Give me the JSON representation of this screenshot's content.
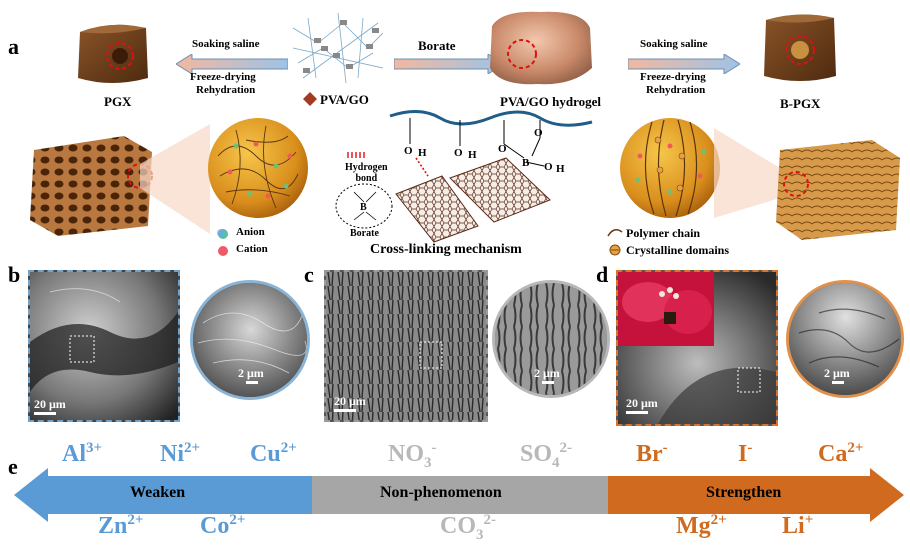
{
  "panels": {
    "a": "a",
    "b": "b",
    "c": "c",
    "d": "d",
    "e": "e"
  },
  "panel_a": {
    "left_arrow": {
      "line1": "Soaking saline",
      "line2": "Freeze-drying",
      "line3": "Rehydration"
    },
    "center_arrow": {
      "label": "Borate"
    },
    "right_arrow": {
      "line1": "Soaking saline",
      "line2": "Freeze-drying",
      "line3": "Rehydration"
    },
    "pgx_label": "PGX",
    "bpgx_label": "B-PGX",
    "pvago_label": "PVA/GO",
    "hydrogel_label": "PVA/GO hydrogel",
    "hydrogen_bond_line1": "Hydrogen",
    "hydrogen_bond_line2": "bond",
    "borate_label": "Borate",
    "mechanism_label": "Cross-linking mechanism",
    "legend_left": {
      "anion": "Anion",
      "cation": "Cation"
    },
    "legend_right": {
      "polymer_chain": "Polymer chain",
      "crystalline": "Crystalline domains"
    },
    "boron_symbol": "B",
    "oxygen": "O",
    "hydrogen": "H"
  },
  "panel_b": {
    "scale_main": "20 μm",
    "scale_inset": "2 μm"
  },
  "panel_c": {
    "scale_main": "20 μm",
    "scale_inset": "2 μm"
  },
  "panel_d": {
    "scale_main": "20 μm",
    "scale_inset": "2 μm"
  },
  "panel_e": {
    "weaken": "Weaken",
    "non": "Non-phenomenon",
    "strengthen": "Strengthen",
    "colors": {
      "weaken": "#5b9bd5",
      "non": "#a6a6a6",
      "strengthen": "#d06a1e"
    },
    "ions_top": [
      {
        "base": "Al",
        "sup": "3+",
        "sub": ""
      },
      {
        "base": "Ni",
        "sup": "2+",
        "sub": ""
      },
      {
        "base": "Cu",
        "sup": "2+",
        "sub": ""
      },
      {
        "base": "NO",
        "sup": "-",
        "sub": "3"
      },
      {
        "base": "SO",
        "sup": "2-",
        "sub": "4"
      },
      {
        "base": "Br",
        "sup": "-",
        "sub": ""
      },
      {
        "base": "I",
        "sup": "-",
        "sub": ""
      },
      {
        "base": "Ca",
        "sup": "2+",
        "sub": ""
      }
    ],
    "ions_bottom": [
      {
        "base": "Zn",
        "sup": "2+",
        "sub": ""
      },
      {
        "base": "Co",
        "sup": "2+",
        "sub": ""
      },
      {
        "base": "CO",
        "sup": "2-",
        "sub": "3"
      },
      {
        "base": "Mg",
        "sup": "2+",
        "sub": ""
      },
      {
        "base": "Li",
        "sup": "+",
        "sub": ""
      }
    ]
  }
}
